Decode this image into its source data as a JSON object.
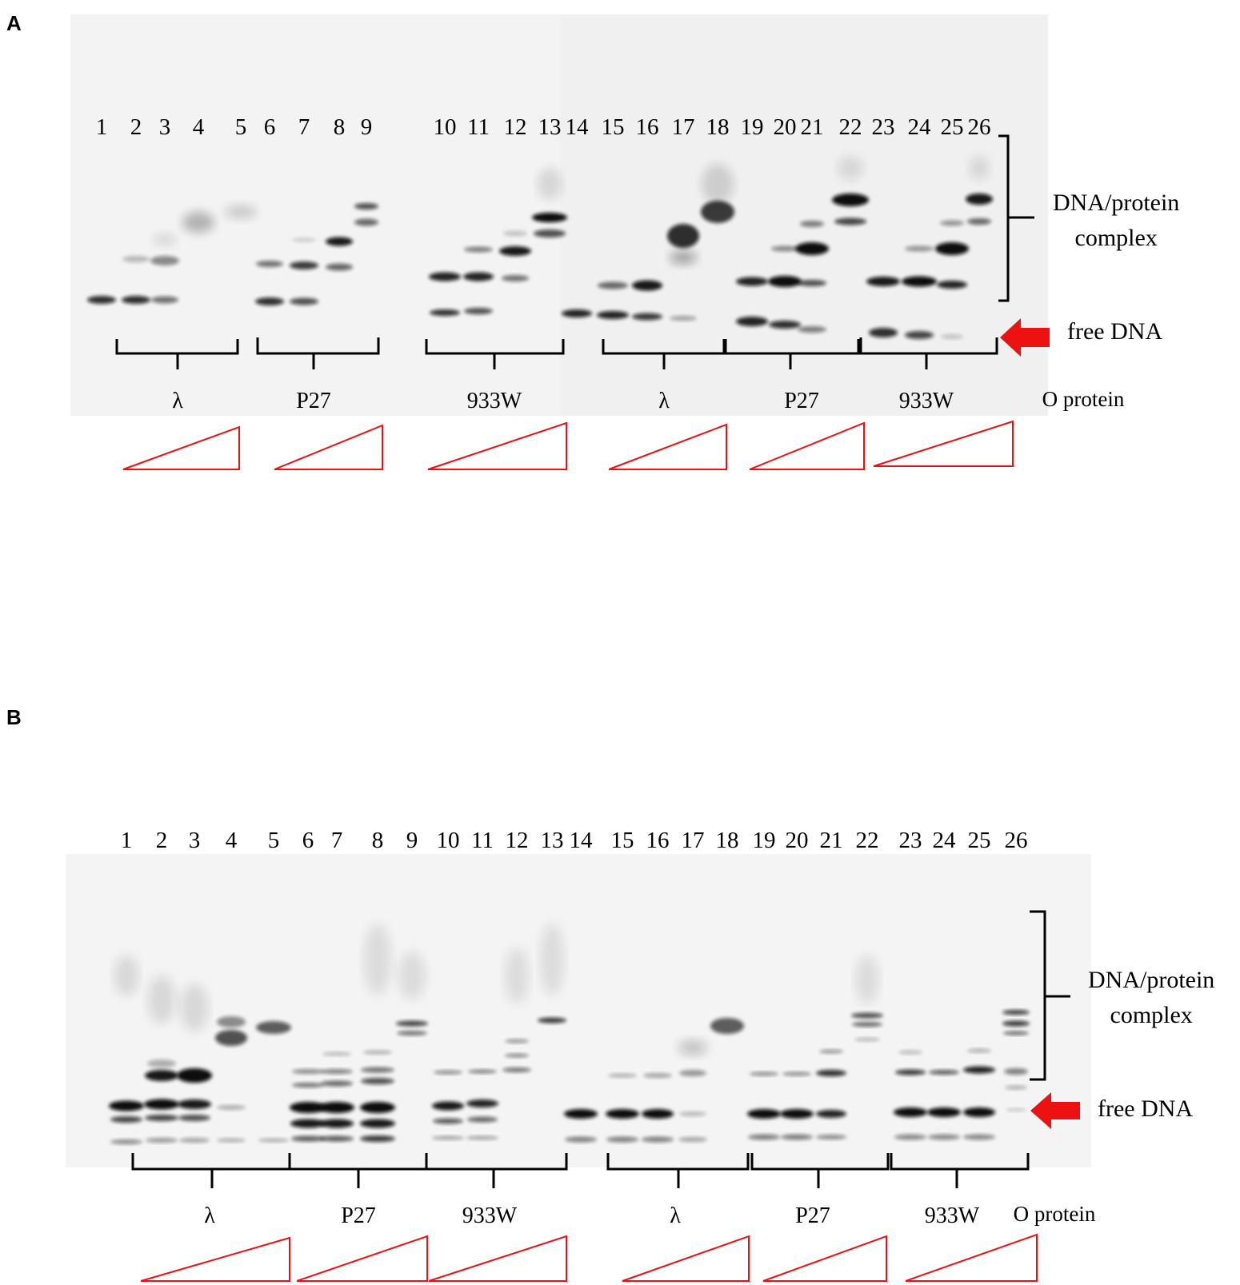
{
  "panels": [
    {
      "letter": "A",
      "lanes": [
        "1",
        "2",
        "3",
        "4",
        "5",
        "6",
        "7",
        "8",
        "9",
        "10",
        "11",
        "12",
        "13",
        "14",
        "15",
        "16",
        "17",
        "18",
        "19",
        "20",
        "21",
        "22",
        "23",
        "24",
        "25",
        "26"
      ],
      "groups": [
        "λ",
        "P27",
        "933W",
        "λ",
        "P27",
        "933W"
      ],
      "protein_label": "O protein",
      "complex_label_line1": "DNA/protein",
      "complex_label_line2": "complex",
      "free_dna_label": "free DNA"
    },
    {
      "letter": "B",
      "lanes": [
        "1",
        "2",
        "3",
        "4",
        "5",
        "6",
        "7",
        "8",
        "9",
        "10",
        "11",
        "12",
        "13",
        "14",
        "15",
        "16",
        "17",
        "18",
        "19",
        "20",
        "21",
        "22",
        "23",
        "24",
        "25",
        "26"
      ],
      "groups": [
        "λ",
        "P27",
        "933W",
        "λ",
        "P27",
        "933W"
      ],
      "protein_label": "O protein",
      "complex_label_line1": "DNA/protein",
      "complex_label_line2": "complex",
      "free_dna_label": "free DNA"
    }
  ],
  "colors": {
    "accent": "#ee1111",
    "band": "#0a0a0a",
    "gel": "#f1f1f1"
  }
}
